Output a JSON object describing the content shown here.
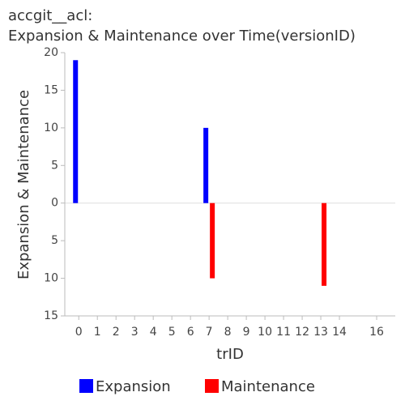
{
  "chart_data": {
    "type": "bar",
    "title": [
      "accgit__acl:",
      "Expansion & Maintenance over Time(versionID)"
    ],
    "xlabel": "trID",
    "ylabel": "Expansion & Maintenance",
    "series": [
      {
        "name": "Expansion",
        "color": "#0000ff",
        "x": [
          0,
          7
        ],
        "values": [
          19,
          10
        ]
      },
      {
        "name": "Maintenance",
        "color": "#ff0000",
        "x": [
          7,
          13
        ],
        "values": [
          -10,
          -11
        ]
      }
    ],
    "xlim": [
      -0.75,
      17
    ],
    "xticks": [
      0,
      1,
      2,
      3,
      4,
      5,
      6,
      7,
      8,
      9,
      10,
      11,
      12,
      13,
      14,
      16
    ],
    "ylim": [
      -15,
      20
    ],
    "yticks": [
      {
        "value": -15,
        "label": "15"
      },
      {
        "value": -10,
        "label": "10"
      },
      {
        "value": -5,
        "label": "5"
      },
      0,
      5,
      10,
      15,
      20
    ],
    "legend": "bottom"
  }
}
